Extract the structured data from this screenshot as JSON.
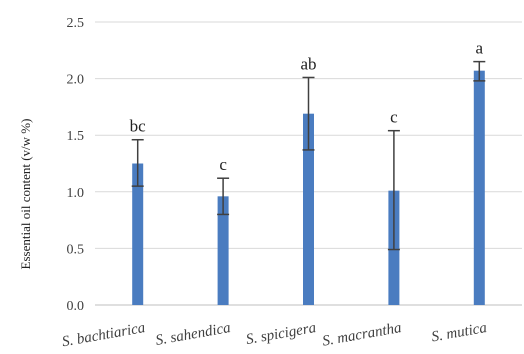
{
  "chart_data": {
    "type": "bar",
    "title": "",
    "xlabel": "",
    "ylabel": "Essential oil content (v/w %)",
    "ylim": [
      0,
      2.5
    ],
    "yticks": [
      "0.0",
      "0.5",
      "1.0",
      "1.5",
      "2.0",
      "2.5"
    ],
    "grid": true,
    "categories": [
      "S. bachtiarica",
      "S. sahendica",
      "S. spicigera",
      "S. macrantha",
      "S. mutica"
    ],
    "values": [
      1.25,
      0.96,
      1.69,
      1.01,
      2.07
    ],
    "error_low": [
      1.05,
      0.8,
      1.37,
      0.49,
      1.98
    ],
    "error_high": [
      1.46,
      1.12,
      2.01,
      1.54,
      2.15
    ],
    "significance": [
      "bc",
      "c",
      "ab",
      "c",
      "a"
    ],
    "colors": {
      "bar": "#4a7cc0",
      "grid": "#d9d9d9",
      "error_bar": "#404040"
    }
  }
}
